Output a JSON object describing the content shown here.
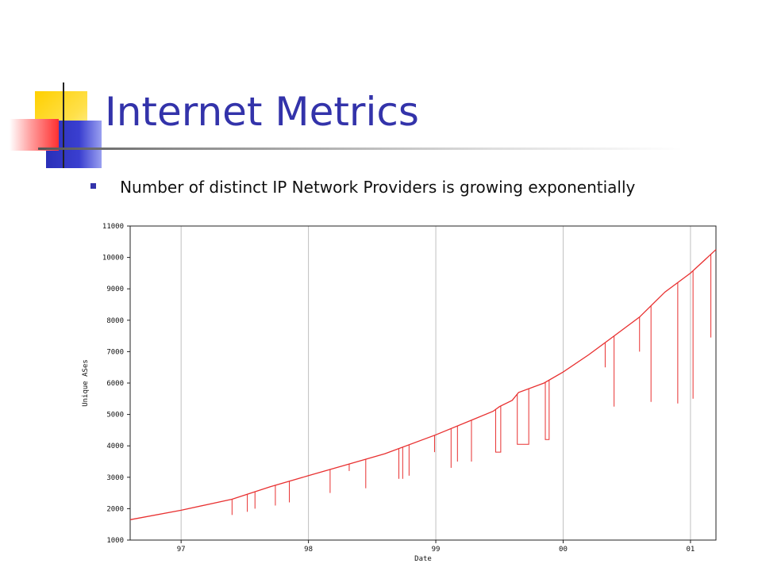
{
  "slide": {
    "title": "Internet Metrics",
    "bullet": "Number of distinct IP Network Providers is growing exponentially"
  },
  "colors": {
    "title": "#3333aa",
    "series": "#e83030",
    "grid": "#c0c0c0",
    "deco_yellow": "#ffd000",
    "deco_blue": "#2a2fb8",
    "deco_red": "#ff3030"
  },
  "chart_data": {
    "type": "line",
    "title": "",
    "xlabel": "Date",
    "ylabel": "Unique ASes",
    "xlim": [
      1996.6,
      2001.2
    ],
    "ylim": [
      1000,
      11000
    ],
    "xticks": [
      1997,
      1998,
      1999,
      2000,
      2001
    ],
    "xtick_labels": [
      "97",
      "98",
      "99",
      "00",
      "01"
    ],
    "yticks": [
      1000,
      2000,
      3000,
      4000,
      5000,
      6000,
      7000,
      8000,
      9000,
      10000,
      11000
    ],
    "ytick_labels": [
      "1000",
      "2000",
      "3000",
      "4000",
      "5000",
      "6000",
      "7000",
      "8000",
      "9000",
      "10000",
      "11000"
    ],
    "grid": true,
    "series": [
      {
        "x": [
          1996.6,
          1997.0,
          1997.4,
          1997.7,
          1998.0,
          1998.3,
          1998.6,
          1999.0,
          1999.3,
          1999.45,
          1999.5,
          1999.6,
          1999.65,
          1999.85,
          2000.0,
          2000.2,
          2000.4,
          2000.6,
          2000.8,
          2001.0,
          2001.2
        ],
        "y": [
          1650,
          1950,
          2300,
          2700,
          3050,
          3400,
          3750,
          4350,
          4850,
          5100,
          5250,
          5450,
          5700,
          6000,
          6350,
          6900,
          7500,
          8100,
          8900,
          9500,
          10250
        ]
      }
    ],
    "dips": [
      {
        "x": 1997.4,
        "y": 1800
      },
      {
        "x": 1997.52,
        "y": 1900
      },
      {
        "x": 1997.58,
        "y": 2000
      },
      {
        "x": 1997.74,
        "y": 2100
      },
      {
        "x": 1997.85,
        "y": 2200
      },
      {
        "x": 1998.17,
        "y": 2500
      },
      {
        "x": 1998.32,
        "y": 3200
      },
      {
        "x": 1998.45,
        "y": 2650
      },
      {
        "x": 1998.71,
        "y": 2950
      },
      {
        "x": 1998.74,
        "y": 2950
      },
      {
        "x": 1998.79,
        "y": 3050
      },
      {
        "x": 1998.99,
        "y": 3800
      },
      {
        "x": 1999.12,
        "y": 3300
      },
      {
        "x": 1999.17,
        "y": 3500
      },
      {
        "x": 1999.28,
        "y": 3500
      },
      {
        "x": 2000.33,
        "y": 6500
      },
      {
        "x": 2000.4,
        "y": 5250
      },
      {
        "x": 2000.6,
        "y": 7000
      },
      {
        "x": 2000.69,
        "y": 5400
      },
      {
        "x": 2000.9,
        "y": 5350
      },
      {
        "x": 2001.02,
        "y": 5500
      },
      {
        "x": 2001.16,
        "y": 7450
      }
    ],
    "plateaus": [
      {
        "x1": 1999.47,
        "x2": 1999.51,
        "y": 3800
      },
      {
        "x1": 1999.64,
        "x2": 1999.73,
        "y": 4050
      },
      {
        "x1": 1999.86,
        "x2": 1999.89,
        "y": 4200
      }
    ]
  }
}
